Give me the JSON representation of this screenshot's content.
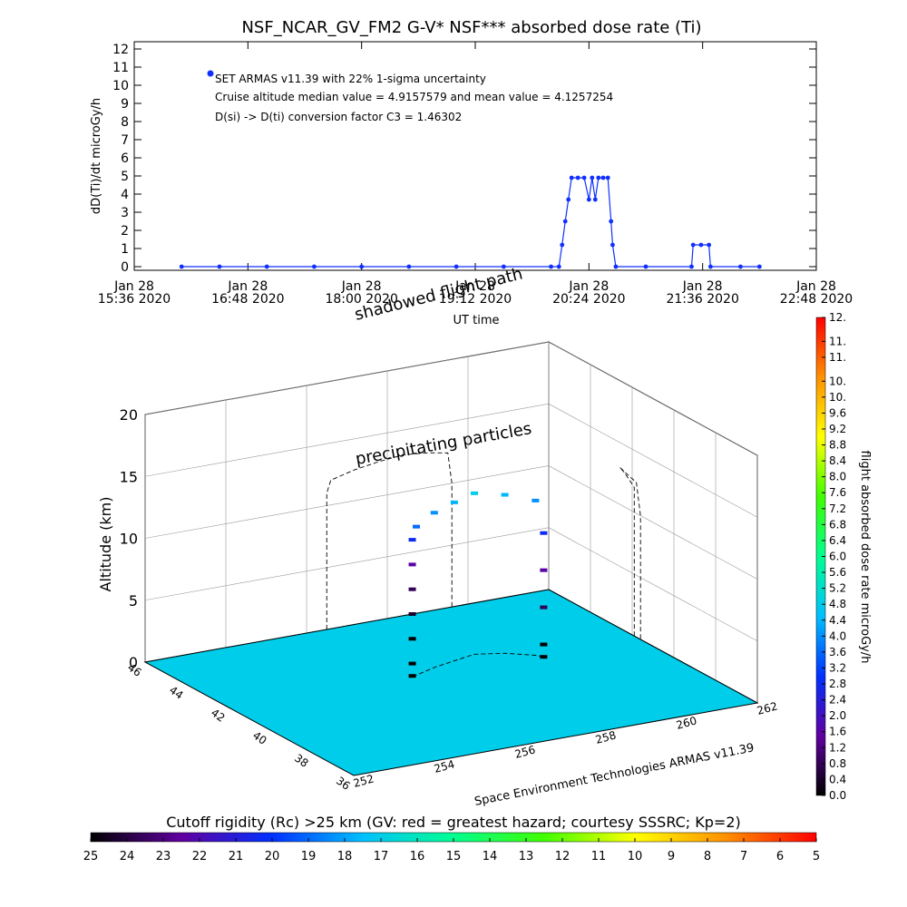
{
  "chart_data": [
    {
      "type": "line",
      "title": "NSF_NCAR_GV_FM2 G-V* NSF*** absorbed dose rate (Ti)",
      "ylabel": "dD(Ti)/dt microGy/h",
      "xlabel": "UT time",
      "annotations": [
        "Cruise altitude median value = 4.9157579 and mean value = 4.1257254",
        "D(si) -> D(ti) conversion factor C3 = 1.46302"
      ],
      "x": [
        "2020-01-28 16:06",
        "2020-01-28 16:30",
        "2020-01-28 17:00",
        "2020-01-28 17:30",
        "2020-01-28 18:00",
        "2020-01-28 18:30",
        "2020-01-28 19:00",
        "2020-01-28 19:30",
        "2020-01-28 20:00",
        "2020-01-28 20:05",
        "2020-01-28 20:07",
        "2020-01-28 20:09",
        "2020-01-28 20:11",
        "2020-01-28 20:13",
        "2020-01-28 20:17",
        "2020-01-28 20:21",
        "2020-01-28 20:24",
        "2020-01-28 20:26",
        "2020-01-28 20:28",
        "2020-01-28 20:30",
        "2020-01-28 20:33",
        "2020-01-28 20:36",
        "2020-01-28 20:38",
        "2020-01-28 20:39",
        "2020-01-28 20:41",
        "2020-01-28 21:00",
        "2020-01-28 21:29",
        "2020-01-28 21:30",
        "2020-01-28 21:35",
        "2020-01-28 21:40",
        "2020-01-28 21:41",
        "2020-01-28 22:00",
        "2020-01-28 22:12"
      ],
      "series": [
        {
          "name": "SET ARMAS v11.39 with 22% 1-sigma uncertainty",
          "color": "#1030ff",
          "values": [
            0,
            0,
            0,
            0,
            0,
            0,
            0,
            0,
            0,
            0,
            1.2,
            2.5,
            3.7,
            4.9,
            4.9,
            4.9,
            3.7,
            4.9,
            3.7,
            4.9,
            4.9,
            4.9,
            2.5,
            1.2,
            0,
            0,
            0,
            1.2,
            1.2,
            1.2,
            0,
            0,
            0
          ]
        }
      ],
      "xlim": [
        "2020-01-28 15:36",
        "2020-01-28 22:48"
      ],
      "xticks": [
        {
          "value": "2020-01-28 15:36",
          "label": [
            "Jan 28",
            "15:36 2020"
          ]
        },
        {
          "value": "2020-01-28 16:48",
          "label": [
            "Jan 28",
            "16:48 2020"
          ]
        },
        {
          "value": "2020-01-28 18:00",
          "label": [
            "Jan 28",
            "18:00 2020"
          ]
        },
        {
          "value": "2020-01-28 19:12",
          "label": [
            "Jan 28",
            "19:12 2020"
          ]
        },
        {
          "value": "2020-01-28 20:24",
          "label": [
            "Jan 28",
            "20:24 2020"
          ]
        },
        {
          "value": "2020-01-28 21:36",
          "label": [
            "Jan 28",
            "21:36 2020"
          ]
        },
        {
          "value": "2020-01-28 22:48",
          "label": [
            "Jan 28",
            "22:48 2020"
          ]
        }
      ],
      "ylim": [
        -0.2,
        12.4
      ],
      "yticks": [
        0,
        1,
        2,
        3,
        4,
        5,
        6,
        7,
        8,
        9,
        10,
        11,
        12
      ]
    },
    {
      "type": "scatter3d",
      "zlabel": "Altitude (km)",
      "annotations": [
        "shadowed flight path",
        "precipitating particles"
      ],
      "footer": "Space Environment Technologies ARMAS v11.39",
      "xlim": [
        252,
        262
      ],
      "xticks": [
        252,
        254,
        256,
        258,
        260,
        262
      ],
      "ylim": [
        36,
        46
      ],
      "yticks": [
        36,
        38,
        40,
        42,
        44,
        46
      ],
      "zlim": [
        0,
        20
      ],
      "zticks": [
        0,
        5,
        10,
        15,
        20
      ],
      "points": {
        "lon": [
          256.5,
          256.5,
          256.5,
          256.5,
          256.5,
          256.5,
          256.5,
          256.6,
          257.2,
          257.8,
          258.4,
          259.0,
          259.5,
          259.6,
          259.6,
          259.6,
          259.6,
          259.6
        ],
        "lat": [
          41.9,
          41.9,
          41.9,
          41.9,
          41.9,
          41.9,
          41.9,
          41.9,
          42.2,
          42.4,
          42.6,
          42.3,
          41.8,
          41.6,
          41.6,
          41.6,
          41.6,
          41.6
        ],
        "alt": [
          0,
          1,
          3,
          5,
          7,
          9,
          11,
          12,
          12.5,
          12.8,
          13,
          12.8,
          12.5,
          10,
          7,
          4,
          1,
          0
        ],
        "dose": [
          0,
          0,
          0,
          0.4,
          0.8,
          1.6,
          2.8,
          3.6,
          4.0,
          4.4,
          4.8,
          4.4,
          4.0,
          2.8,
          1.6,
          0.8,
          0,
          0
        ]
      },
      "floor_rigidity": 17,
      "colormap": [
        "#000000",
        "#6000a0",
        "#0030ff",
        "#00c0ff",
        "#00ff90",
        "#40ff00",
        "#ffff00",
        "#ff9000",
        "#ff0000"
      ],
      "colorbar": {
        "label": "flight absorbed dose rate microGy/h",
        "lim": [
          0,
          12
        ],
        "ticks": [
          {
            "value": 0,
            "label": "0.0"
          },
          0.4,
          0.8,
          1.2,
          1.6,
          {
            "value": 2,
            "label": "2.0"
          },
          2.4,
          2.8,
          3.2,
          3.6,
          {
            "value": 4,
            "label": "4.0"
          },
          4.4,
          4.8,
          5.2,
          5.6,
          {
            "value": 6,
            "label": "6.0"
          },
          6.4,
          6.8,
          7.2,
          7.6,
          {
            "value": 8,
            "label": "8.0"
          },
          8.4,
          8.8,
          9.2,
          9.6,
          {
            "value": 10,
            "label": "10."
          },
          {
            "value": 10.4,
            "label": "10."
          },
          {
            "value": 11,
            "label": "11."
          },
          {
            "value": 11.4,
            "label": "11."
          },
          {
            "value": 12,
            "label": "12."
          }
        ]
      },
      "rigidity_bar": {
        "label": "Cutoff rigidity (Rc) >25 km (GV: red = greatest hazard; courtesy SSSRC; Kp=2)",
        "lim": [
          25,
          5
        ],
        "ticks": [
          25,
          24,
          23,
          22,
          21,
          20,
          19,
          18,
          17,
          16,
          15,
          14,
          13,
          12,
          11,
          10,
          9,
          8,
          7,
          6,
          5
        ]
      }
    }
  ]
}
